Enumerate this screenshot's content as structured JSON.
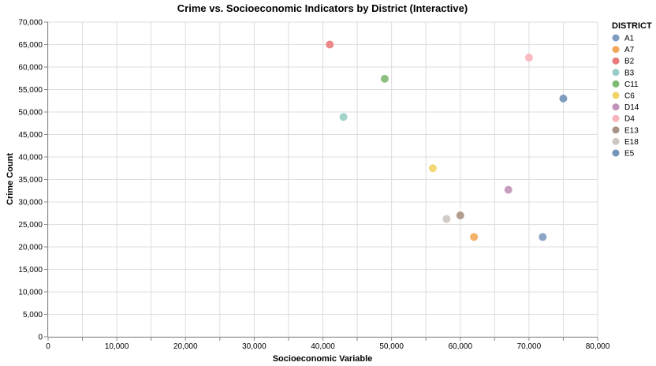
{
  "chart_data": {
    "type": "scatter",
    "title": "Crime vs. Socioeconomic Indicators by District (Interactive)",
    "xlabel": "Socioeconomic Variable",
    "ylabel": "Crime Count",
    "xlim": [
      0,
      80000
    ],
    "ylim": [
      0,
      70000
    ],
    "x_ticks": [
      0,
      10000,
      20000,
      30000,
      40000,
      50000,
      60000,
      70000,
      80000
    ],
    "x_minor_ticks": [
      5000,
      15000,
      25000,
      35000,
      45000,
      55000,
      65000,
      75000
    ],
    "y_ticks": [
      0,
      5000,
      10000,
      15000,
      20000,
      25000,
      30000,
      35000,
      40000,
      45000,
      50000,
      55000,
      60000,
      65000,
      70000
    ],
    "grid": true,
    "legend_position": "right",
    "legend_title": "DISTRICT",
    "series": [
      {
        "name": "A1",
        "color": "#7f9bc0",
        "x": 72000,
        "y": 22200
      },
      {
        "name": "A7",
        "color": "#f2a85b",
        "x": 62000,
        "y": 22200
      },
      {
        "name": "B2",
        "color": "#e97b7b",
        "x": 41000,
        "y": 65000
      },
      {
        "name": "B3",
        "color": "#97cdc6",
        "x": 43000,
        "y": 48900
      },
      {
        "name": "C11",
        "color": "#7fba73",
        "x": 49000,
        "y": 57400
      },
      {
        "name": "C6",
        "color": "#f2d466",
        "x": 56000,
        "y": 37500
      },
      {
        "name": "D14",
        "color": "#c293b9",
        "x": 67000,
        "y": 32700
      },
      {
        "name": "D4",
        "color": "#f8b3bc",
        "x": 70000,
        "y": 62100
      },
      {
        "name": "E13",
        "color": "#a99282",
        "x": 60000,
        "y": 27000
      },
      {
        "name": "E18",
        "color": "#cdc5c0",
        "x": 58000,
        "y": 26200
      },
      {
        "name": "E5",
        "color": "#7295b8",
        "x": 75000,
        "y": 53000
      }
    ]
  }
}
